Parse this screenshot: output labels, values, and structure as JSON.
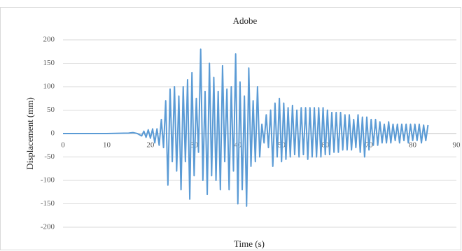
{
  "chart_data": {
    "type": "line",
    "title": "Adobe",
    "x_label": "Time (s)",
    "y_label": "Displacement (mm)",
    "x": [
      0,
      5,
      10,
      15,
      16,
      17,
      18,
      18.5,
      19,
      19.5,
      20,
      20.5,
      21,
      21.5,
      22,
      22.5,
      23,
      23.5,
      24,
      24.5,
      25,
      25.5,
      26,
      26.5,
      27,
      27.5,
      28,
      28.5,
      29,
      29.5,
      30,
      30.5,
      31,
      31.5,
      32,
      32.5,
      33,
      33.5,
      34,
      34.5,
      35,
      35.5,
      36,
      36.5,
      37,
      37.5,
      38,
      38.5,
      39,
      39.5,
      40,
      40.5,
      41,
      41.5,
      42,
      42.5,
      43,
      43.5,
      44,
      44.5,
      45,
      45.5,
      46,
      46.5,
      47,
      47.5,
      48,
      48.5,
      49,
      49.5,
      50,
      50.5,
      51,
      51.5,
      52,
      52.5,
      53,
      53.5,
      54,
      54.5,
      55,
      55.5,
      56,
      56.5,
      57,
      57.5,
      58,
      58.5,
      59,
      59.5,
      60,
      60.5,
      61,
      61.5,
      62,
      62.5,
      63,
      63.5,
      64,
      64.5,
      65,
      65.5,
      66,
      66.5,
      67,
      67.5,
      68,
      68.5,
      69,
      69.5,
      70,
      70.5,
      71,
      71.5,
      72,
      72.5,
      73,
      73.5,
      74,
      74.5,
      75,
      75.5,
      76,
      76.5,
      77,
      77.5,
      78,
      78.5,
      79,
      79.5,
      80,
      80.5,
      81,
      81.5,
      82,
      82.5,
      83,
      83.5
    ],
    "series": [
      {
        "color": "#5b9bd5",
        "values": [
          0,
          0,
          0,
          1,
          2,
          0,
          -5,
          5,
          -8,
          8,
          -10,
          10,
          -20,
          10,
          -25,
          30,
          -30,
          70,
          -110,
          95,
          -60,
          100,
          -80,
          80,
          -120,
          100,
          -60,
          115,
          -140,
          130,
          -90,
          75,
          -40,
          180,
          -100,
          90,
          -130,
          150,
          -90,
          120,
          -100,
          90,
          -120,
          145,
          -60,
          95,
          -120,
          100,
          -80,
          170,
          -150,
          110,
          -120,
          80,
          -155,
          140,
          -70,
          70,
          -60,
          100,
          -50,
          20,
          -20,
          40,
          -30,
          50,
          -70,
          65,
          -50,
          75,
          -60,
          65,
          -55,
          55,
          -50,
          60,
          -45,
          50,
          -50,
          55,
          -45,
          55,
          -55,
          55,
          -50,
          55,
          -50,
          55,
          -50,
          55,
          -45,
          50,
          -45,
          45,
          -40,
          45,
          -40,
          45,
          -35,
          40,
          -35,
          40,
          -35,
          30,
          -30,
          40,
          -40,
          35,
          -50,
          35,
          -35,
          30,
          -25,
          30,
          -25,
          25,
          -20,
          20,
          -20,
          25,
          -20,
          20,
          -15,
          20,
          -20,
          20,
          -15,
          20,
          -20,
          20,
          -15,
          20,
          -15,
          20,
          -20,
          18,
          -15,
          18
        ]
      }
    ],
    "xlim": [
      0,
      90
    ],
    "xticks": [
      0,
      10,
      20,
      30,
      40,
      50,
      60,
      70,
      80,
      90
    ],
    "ylim": [
      -200,
      200
    ],
    "yticks": [
      -200,
      -150,
      -100,
      -50,
      0,
      50,
      100,
      150,
      200
    ],
    "grid": true
  }
}
